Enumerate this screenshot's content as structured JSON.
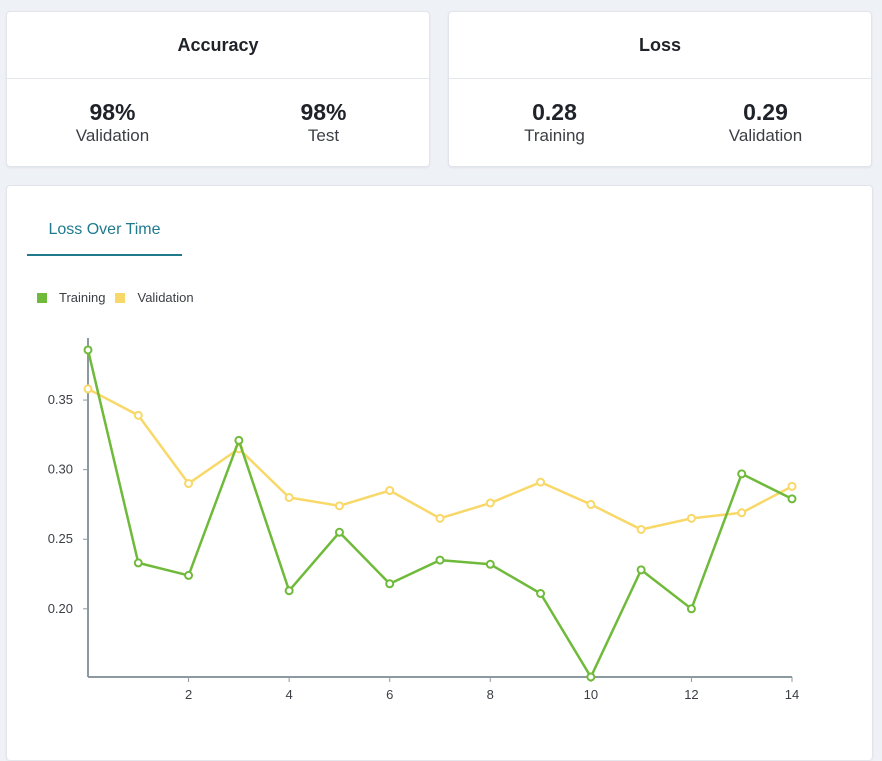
{
  "accuracy_card": {
    "title": "Accuracy",
    "metrics": [
      {
        "value": "98%",
        "label": "Validation"
      },
      {
        "value": "98%",
        "label": "Test"
      }
    ]
  },
  "loss_card": {
    "title": "Loss",
    "metrics": [
      {
        "value": "0.28",
        "label": "Training"
      },
      {
        "value": "0.29",
        "label": "Validation"
      }
    ]
  },
  "chart_tab": {
    "label": "Loss Over Time"
  },
  "colors": {
    "training": "#6fba3a",
    "validation": "#f8d868",
    "axis": "#8d99a0",
    "accent": "#1f7a8c"
  },
  "chart_data": {
    "type": "line",
    "title": "",
    "xlabel": "",
    "ylabel": "",
    "x": [
      0,
      1,
      2,
      3,
      4,
      5,
      6,
      7,
      8,
      9,
      10,
      11,
      12,
      13,
      14
    ],
    "xticks": [
      2,
      4,
      6,
      8,
      10,
      12,
      14
    ],
    "yticks": [
      0.2,
      0.25,
      0.3,
      0.35
    ],
    "ytick_labels": [
      "0.20",
      "0.25",
      "0.30",
      "0.35"
    ],
    "xlim": [
      0,
      14
    ],
    "ylim": [
      0.151,
      0.391
    ],
    "grid": false,
    "legend": "top-left",
    "series": [
      {
        "name": "Training",
        "values": [
          0.386,
          0.233,
          0.224,
          0.321,
          0.213,
          0.255,
          0.218,
          0.235,
          0.232,
          0.211,
          0.151,
          0.228,
          0.2,
          0.297,
          0.279
        ]
      },
      {
        "name": "Validation",
        "values": [
          0.358,
          0.339,
          0.29,
          0.315,
          0.28,
          0.274,
          0.285,
          0.265,
          0.276,
          0.291,
          0.275,
          0.257,
          0.265,
          0.269,
          0.288
        ]
      }
    ]
  }
}
